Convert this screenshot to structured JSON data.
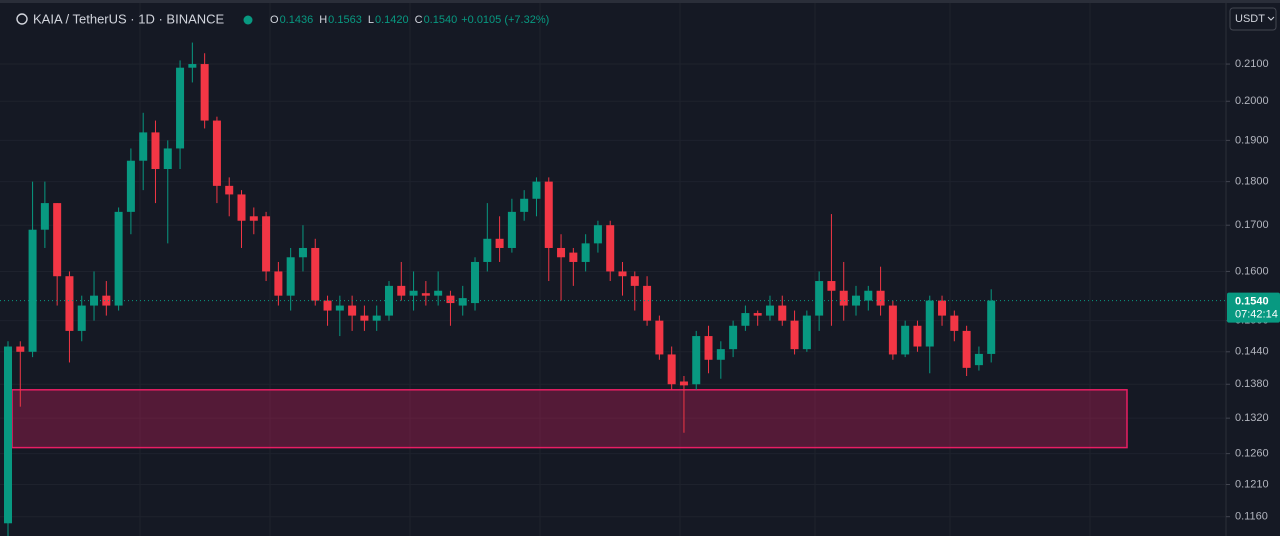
{
  "chart_data": {
    "type": "candlestick",
    "title": "KAIA / TetherUS · 1D · BINANCE",
    "quote": "USDT",
    "ohlc_legend": [
      {
        "key": "O",
        "value": "0.1436"
      },
      {
        "key": "H",
        "value": "0.1563"
      },
      {
        "key": "L",
        "value": "0.1420"
      },
      {
        "key": "C",
        "value": "0.1540"
      }
    ],
    "change": "+0.0105 (+7.32%)",
    "last_price": {
      "value": 0.154,
      "label": "0.1540"
    },
    "countdown": "07:42:14",
    "log_scale": true,
    "grid": true,
    "up_color": "#089981",
    "down_color": "#f23645",
    "zone": {
      "top": 0.137,
      "bottom": 0.127,
      "color": "#e91e63"
    },
    "ylim": [
      0.1131,
      0.2284
    ],
    "yticks": [
      {
        "value": 0.21,
        "label": "0.2100"
      },
      {
        "value": 0.2,
        "label": "0.2000"
      },
      {
        "value": 0.19,
        "label": "0.1900"
      },
      {
        "value": 0.18,
        "label": "0.1800"
      },
      {
        "value": 0.17,
        "label": "0.1700"
      },
      {
        "value": 0.16,
        "label": "0.1600"
      },
      {
        "value": 0.15,
        "label": "0.1500"
      },
      {
        "value": 0.144,
        "label": "0.1440"
      },
      {
        "value": 0.138,
        "label": "0.1380"
      },
      {
        "value": 0.132,
        "label": "0.1320"
      },
      {
        "value": 0.126,
        "label": "0.1260"
      },
      {
        "value": 0.121,
        "label": "0.1210"
      },
      {
        "value": 0.116,
        "label": "0.1160"
      }
    ],
    "open": [
      0.115,
      0.145,
      0.144,
      0.169,
      0.175,
      0.159,
      0.148,
      0.153,
      0.155,
      0.153,
      0.173,
      0.185,
      0.192,
      0.183,
      0.188,
      0.209,
      0.21,
      0.195,
      0.179,
      0.177,
      0.172,
      0.172,
      0.16,
      0.155,
      0.163,
      0.165,
      0.154,
      0.152,
      0.153,
      0.151,
      0.15,
      0.151,
      0.157,
      0.155,
      0.1555,
      0.155,
      0.155,
      0.153,
      0.1535,
      0.162,
      0.167,
      0.165,
      0.173,
      0.176,
      0.18,
      0.165,
      0.164,
      0.162,
      0.166,
      0.17,
      0.16,
      0.159,
      0.157,
      0.15,
      0.1435,
      0.1385,
      0.138,
      0.147,
      0.1425,
      0.1445,
      0.149,
      0.1515,
      0.151,
      0.153,
      0.15,
      0.1445,
      0.151,
      0.158,
      0.156,
      0.153,
      0.154,
      0.156,
      0.153,
      0.1435,
      0.149,
      0.145,
      0.154,
      0.151,
      0.148,
      0.1415,
      0.1436
    ],
    "high": [
      0.146,
      0.146,
      0.18,
      0.18,
      0.175,
      0.16,
      0.155,
      0.16,
      0.158,
      0.174,
      0.188,
      0.197,
      0.195,
      0.19,
      0.211,
      0.216,
      0.213,
      0.196,
      0.181,
      0.178,
      0.174,
      0.173,
      0.162,
      0.165,
      0.17,
      0.167,
      0.155,
      0.155,
      0.155,
      0.153,
      0.153,
      0.158,
      0.162,
      0.16,
      0.158,
      0.16,
      0.156,
      0.157,
      0.163,
      0.175,
      0.172,
      0.176,
      0.178,
      0.181,
      0.181,
      0.168,
      0.165,
      0.168,
      0.171,
      0.171,
      0.162,
      0.16,
      0.159,
      0.151,
      0.145,
      0.1395,
      0.148,
      0.149,
      0.146,
      0.15,
      0.153,
      0.152,
      0.155,
      0.155,
      0.152,
      0.152,
      0.16,
      0.1725,
      0.162,
      0.157,
      0.157,
      0.161,
      0.154,
      0.15,
      0.15,
      0.155,
      0.155,
      0.152,
      0.149,
      0.145,
      0.1563
    ],
    "low": [
      0.113,
      0.134,
      0.143,
      0.165,
      0.153,
      0.142,
      0.146,
      0.15,
      0.151,
      0.152,
      0.168,
      0.178,
      0.175,
      0.166,
      0.183,
      0.205,
      0.193,
      0.175,
      0.172,
      0.165,
      0.168,
      0.158,
      0.153,
      0.152,
      0.16,
      0.153,
      0.149,
      0.147,
      0.148,
      0.148,
      0.148,
      0.15,
      0.154,
      0.152,
      0.153,
      0.153,
      0.149,
      0.151,
      0.152,
      0.16,
      0.162,
      0.164,
      0.171,
      0.172,
      0.158,
      0.154,
      0.157,
      0.16,
      0.164,
      0.158,
      0.155,
      0.152,
      0.149,
      0.1425,
      0.137,
      0.1295,
      0.137,
      0.14,
      0.139,
      0.143,
      0.148,
      0.149,
      0.15,
      0.149,
      0.1435,
      0.144,
      0.148,
      0.149,
      0.15,
      0.151,
      0.152,
      0.151,
      0.1425,
      0.143,
      0.144,
      0.14,
      0.149,
      0.146,
      0.1395,
      0.1405,
      0.142
    ],
    "close": [
      0.145,
      0.144,
      0.169,
      0.175,
      0.159,
      0.148,
      0.153,
      0.155,
      0.153,
      0.173,
      0.185,
      0.192,
      0.183,
      0.188,
      0.209,
      0.21,
      0.195,
      0.179,
      0.177,
      0.171,
      0.171,
      0.16,
      0.155,
      0.163,
      0.165,
      0.154,
      0.152,
      0.153,
      0.151,
      0.15,
      0.151,
      0.157,
      0.155,
      0.156,
      0.155,
      0.156,
      0.1535,
      0.1545,
      0.162,
      0.167,
      0.165,
      0.173,
      0.176,
      0.18,
      0.165,
      0.163,
      0.162,
      0.166,
      0.17,
      0.16,
      0.159,
      0.157,
      0.15,
      0.1435,
      0.138,
      0.1378,
      0.147,
      0.1425,
      0.1445,
      0.149,
      0.1515,
      0.151,
      0.153,
      0.15,
      0.1445,
      0.151,
      0.158,
      0.156,
      0.153,
      0.155,
      0.156,
      0.153,
      0.1435,
      0.149,
      0.145,
      0.154,
      0.151,
      0.148,
      0.141,
      0.1436,
      0.154
    ]
  }
}
